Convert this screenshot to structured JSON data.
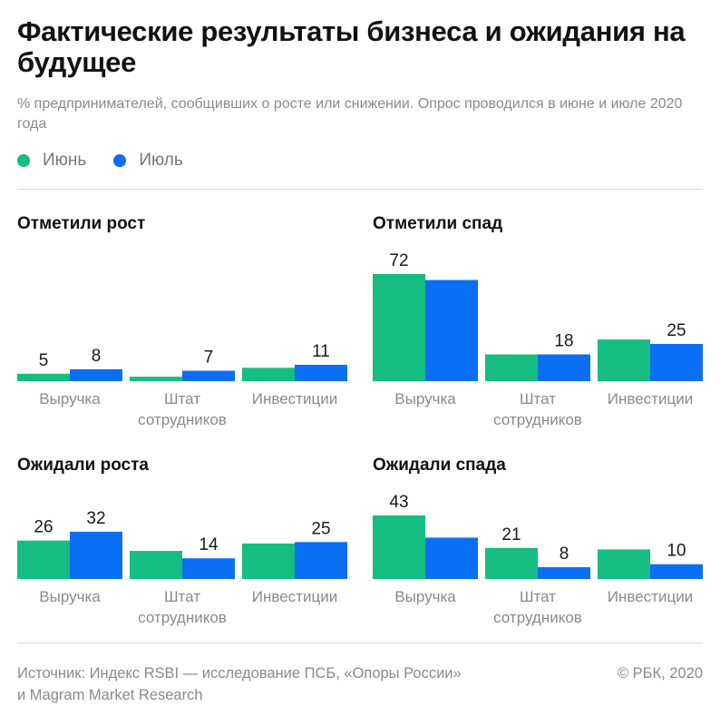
{
  "title": "Фактические результаты бизнеса и ожидания на будущее",
  "subtitle": "% предпринимателей, сообщивших о росте или снижении. Опрос проводился в июне и июле 2020 года",
  "colors": {
    "june": "#16bd80",
    "july": "#0a6ff5"
  },
  "legend": {
    "june": "Июнь",
    "july": "Июль"
  },
  "chart_data": [
    {
      "type": "bar",
      "title": "Отметили рост",
      "categories": [
        "Выручка",
        "Штат сотрудников",
        "Инвестиции"
      ],
      "category_labels": [
        [
          "Выручка"
        ],
        [
          "Штат",
          "сотрудников"
        ],
        [
          "Инвестиции"
        ]
      ],
      "series": [
        {
          "name": "Июнь",
          "values": [
            5,
            3,
            9
          ]
        },
        {
          "name": "Июль",
          "values": [
            8,
            7,
            11
          ]
        }
      ],
      "value_labels": [
        [
          "5",
          "8"
        ],
        [
          "",
          "7"
        ],
        [
          "",
          "11"
        ]
      ],
      "ylim": [
        0,
        72
      ]
    },
    {
      "type": "bar",
      "title": "Отметили спад",
      "categories": [
        "Выручка",
        "Штат сотрудников",
        "Инвестиции"
      ],
      "category_labels": [
        [
          "Выручка"
        ],
        [
          "Штат",
          "сотрудников"
        ],
        [
          "Инвестиции"
        ]
      ],
      "series": [
        {
          "name": "Июнь",
          "values": [
            72,
            18,
            28
          ]
        },
        {
          "name": "Июль",
          "values": [
            68,
            18,
            25
          ]
        }
      ],
      "value_labels": [
        [
          "72",
          ""
        ],
        [
          "",
          "18"
        ],
        [
          "",
          "25"
        ]
      ],
      "ylim": [
        0,
        72
      ]
    },
    {
      "type": "bar",
      "title": "Ожидали роста",
      "categories": [
        "Выручка",
        "Штат сотрудников",
        "Инвестиции"
      ],
      "category_labels": [
        [
          "Выручка"
        ],
        [
          "Штат",
          "сотрудников"
        ],
        [
          "Инвестиции"
        ]
      ],
      "series": [
        {
          "name": "Июнь",
          "values": [
            26,
            19,
            24
          ]
        },
        {
          "name": "Июль",
          "values": [
            32,
            14,
            25
          ]
        }
      ],
      "value_labels": [
        [
          "26",
          "32"
        ],
        [
          "",
          "14"
        ],
        [
          "",
          "25"
        ]
      ],
      "ylim": [
        0,
        43
      ]
    },
    {
      "type": "bar",
      "title": "Ожидали спада",
      "categories": [
        "Выручка",
        "Штат сотрудников",
        "Инвестиции"
      ],
      "category_labels": [
        [
          "Выручка"
        ],
        [
          "Штат",
          "сотрудников"
        ],
        [
          "Инвестиции"
        ]
      ],
      "series": [
        {
          "name": "Июнь",
          "values": [
            43,
            21,
            20
          ]
        },
        {
          "name": "Июль",
          "values": [
            28,
            8,
            10
          ]
        }
      ],
      "value_labels": [
        [
          "43",
          ""
        ],
        [
          "21",
          "8"
        ],
        [
          "",
          "10"
        ]
      ],
      "ylim": [
        0,
        43
      ]
    }
  ],
  "footer": {
    "source_line1": "Источник: Индекс RSBI — исследование ПСБ, «Опоры России»",
    "source_line2": "и Magram Market Research",
    "copyright": "© РБК, 2020"
  }
}
